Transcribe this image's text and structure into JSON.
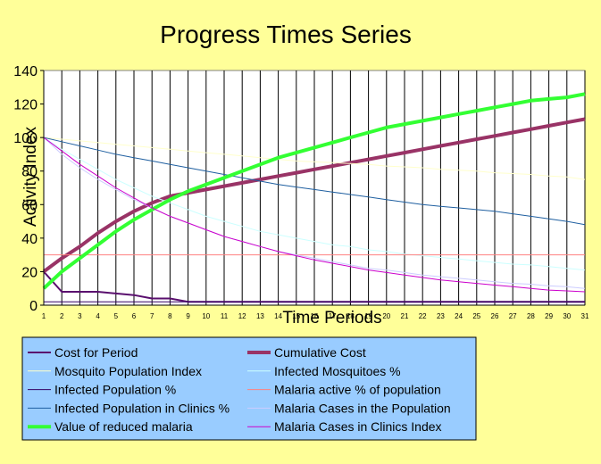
{
  "chart_data": {
    "type": "line",
    "title": "Progress Times Series",
    "xlabel": "Time Periods",
    "ylabel": "Activity Index",
    "ylim": [
      0,
      140
    ],
    "yticks": [
      0,
      20,
      40,
      60,
      80,
      100,
      120,
      140
    ],
    "x": [
      "1",
      "2",
      "3",
      "4",
      "5",
      "6",
      "7",
      "8",
      "9",
      "10",
      "11",
      "12",
      "13",
      "14",
      "15",
      "16",
      "17",
      "18",
      "19",
      "20",
      "21",
      "22",
      "23",
      "24",
      "25",
      "26",
      "27",
      "28",
      "29",
      "30",
      "31"
    ],
    "grid": "vertical",
    "legend_position": "bottom",
    "series": [
      {
        "name": "Cost for Period",
        "color": "#5a0f6e",
        "width": 2,
        "values": [
          20,
          8,
          8,
          8,
          7,
          6,
          4,
          4,
          2,
          2,
          2,
          2,
          2,
          2,
          2,
          2,
          2,
          2,
          2,
          2,
          2,
          2,
          2,
          2,
          2,
          2,
          2,
          2,
          2,
          2,
          2
        ]
      },
      {
        "name": "Cumulative Cost",
        "color": "#993366",
        "width": 4,
        "values": [
          20,
          28,
          35,
          43,
          50,
          56,
          61,
          65,
          67,
          69,
          71,
          73,
          75,
          77,
          79,
          81,
          83,
          85,
          87,
          89,
          91,
          93,
          95,
          97,
          99,
          101,
          103,
          105,
          107,
          109,
          111
        ]
      },
      {
        "name": "Mosquito Population Index",
        "color": "#ffffcc",
        "width": 1,
        "values": [
          100,
          99,
          98,
          97,
          96,
          95,
          94,
          93,
          92,
          91,
          90,
          89,
          88,
          87,
          86,
          85.5,
          85,
          84.5,
          84,
          83,
          82.5,
          82,
          81,
          80.5,
          80,
          79,
          78.5,
          78,
          77,
          76.5,
          75
        ]
      },
      {
        "name": "Infected Mosquitoes %",
        "color": "#ccffff",
        "width": 1,
        "values": [
          100,
          93,
          87,
          81,
          75,
          70,
          65,
          61,
          57,
          53,
          50,
          47,
          44,
          42,
          40,
          38,
          36,
          35,
          33,
          32,
          30.5,
          29.5,
          28.5,
          27.5,
          26.5,
          25.5,
          24.5,
          24,
          23,
          22,
          21
        ]
      },
      {
        "name": "Infected Population %",
        "color": "#330066",
        "width": 1,
        "values": [
          2,
          2,
          2,
          2,
          2,
          2,
          2,
          2,
          2,
          2,
          2,
          2,
          2,
          2,
          2,
          2,
          2,
          2,
          2,
          2,
          2,
          2,
          2,
          2,
          2,
          2,
          2,
          2,
          2,
          2,
          2
        ]
      },
      {
        "name": "Malaria active % of population",
        "color": "#ff8080",
        "width": 1,
        "values": [
          30,
          30,
          30,
          30,
          30,
          30,
          30,
          30,
          30,
          30,
          30,
          30,
          30,
          30,
          30,
          30,
          30,
          30,
          30,
          30,
          30,
          30,
          30,
          30,
          30,
          30,
          30,
          30,
          30,
          30,
          30
        ]
      },
      {
        "name": "Infected Population in Clinics %",
        "color": "#1f5fa0",
        "width": 1,
        "values": [
          100,
          97.5,
          95,
          92.5,
          90,
          88,
          86,
          84,
          82,
          80,
          78,
          76,
          74,
          72,
          70.5,
          69,
          67.5,
          66,
          64.5,
          63,
          61.5,
          60,
          59,
          58,
          57,
          56,
          54.5,
          53,
          51.5,
          50,
          48
        ]
      },
      {
        "name": "Malaria Cases in the Population",
        "color": "#ccccff",
        "width": 1,
        "values": [
          100,
          90,
          82,
          75,
          69,
          63,
          58,
          53,
          49,
          45,
          41,
          38,
          35,
          32,
          30,
          28,
          26,
          24,
          22,
          21,
          19.5,
          18,
          17,
          16,
          15,
          14,
          13,
          12.5,
          11.5,
          11,
          10
        ]
      },
      {
        "name": "Value of reduced malaria",
        "color": "#33ff33",
        "width": 4,
        "values": [
          10,
          20,
          28,
          36,
          44,
          51,
          57,
          63,
          68,
          72,
          76,
          80,
          84,
          88,
          91,
          94,
          97,
          100,
          103,
          106,
          108,
          110,
          112,
          114,
          116,
          118,
          120,
          122,
          123,
          124,
          126
        ]
      },
      {
        "name": "Malaria Cases in Clinics Index",
        "color": "#cc00cc",
        "width": 1,
        "values": [
          100,
          92,
          84,
          77,
          70,
          64,
          58,
          53,
          49,
          45,
          41,
          38,
          35,
          32,
          29.5,
          27,
          25,
          23,
          21,
          19.5,
          18,
          16.5,
          15,
          14,
          13,
          12,
          11,
          10,
          9,
          8.5,
          8
        ]
      }
    ]
  }
}
